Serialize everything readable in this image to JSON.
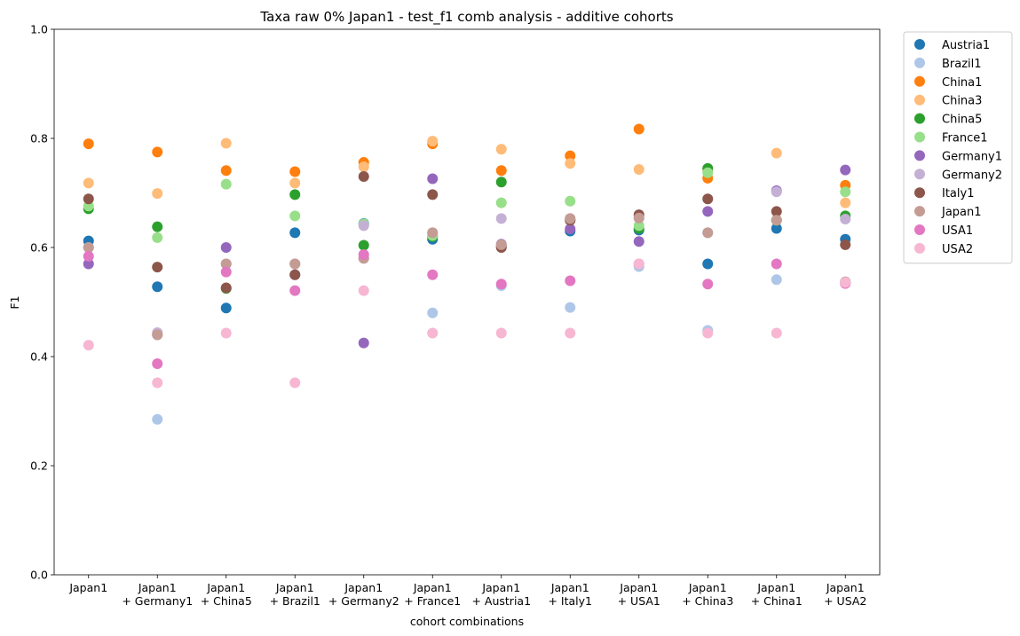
{
  "chart_data": {
    "type": "scatter",
    "title": "Taxa raw 0% Japan1 - test_f1 comb analysis - additive cohorts",
    "xlabel": "cohort combinations",
    "ylabel": "F1",
    "ylim": [
      0,
      1
    ],
    "yticks": [
      "0.0",
      "0.2",
      "0.4",
      "0.6",
      "0.8",
      "1.0"
    ],
    "grid": false,
    "legend_position": "outside-top-right",
    "categories": [
      [
        "Japan1"
      ],
      [
        "Japan1",
        "+ Germany1"
      ],
      [
        "Japan1",
        "+ China5"
      ],
      [
        "Japan1",
        "+ Brazil1"
      ],
      [
        "Japan1",
        "+ Germany2"
      ],
      [
        "Japan1",
        "+ France1"
      ],
      [
        "Japan1",
        "+ Austria1"
      ],
      [
        "Japan1",
        "+ Italy1"
      ],
      [
        "Japan1",
        "+ USA1"
      ],
      [
        "Japan1",
        "+ China3"
      ],
      [
        "Japan1",
        "+ China1"
      ],
      [
        "Japan1",
        "+ USA2"
      ]
    ],
    "series": [
      {
        "name": "Austria1",
        "color": "#1f77b4",
        "values": [
          0.612,
          0.528,
          0.489,
          0.627,
          0.644,
          0.615,
          0.602,
          0.63,
          0.632,
          0.57,
          0.635,
          0.615
        ]
      },
      {
        "name": "Brazil1",
        "color": "#aec7e8",
        "values": [
          0.6,
          0.285,
          0.57,
          0.57,
          0.58,
          0.48,
          0.53,
          0.49,
          0.565,
          0.448,
          0.541,
          0.537
        ]
      },
      {
        "name": "China1",
        "color": "#ff7f0e",
        "values": [
          0.79,
          0.775,
          0.741,
          0.739,
          0.756,
          0.79,
          0.741,
          0.768,
          0.817,
          0.727,
          0.65,
          0.714
        ]
      },
      {
        "name": "China3",
        "color": "#ffbb78",
        "values": [
          0.718,
          0.699,
          0.791,
          0.718,
          0.748,
          0.795,
          0.78,
          0.754,
          0.743,
          0.74,
          0.773,
          0.682
        ]
      },
      {
        "name": "China5",
        "color": "#2ca02c",
        "values": [
          0.671,
          0.638,
          0.525,
          0.697,
          0.604,
          0.62,
          0.72,
          0.65,
          0.635,
          0.745,
          0.65,
          0.658
        ]
      },
      {
        "name": "France1",
        "color": "#98df8a",
        "values": [
          0.676,
          0.618,
          0.716,
          0.658,
          0.643,
          0.622,
          0.682,
          0.685,
          0.64,
          0.737,
          0.65,
          0.702
        ]
      },
      {
        "name": "Germany1",
        "color": "#9467bd",
        "values": [
          0.57,
          0.44,
          0.6,
          0.55,
          0.425,
          0.726,
          0.606,
          0.634,
          0.611,
          0.666,
          0.704,
          0.742
        ]
      },
      {
        "name": "Germany2",
        "color": "#c5b0d5",
        "values": [
          0.6,
          0.444,
          0.57,
          0.57,
          0.64,
          0.627,
          0.653,
          0.653,
          0.654,
          0.627,
          0.702,
          0.652
        ]
      },
      {
        "name": "Italy1",
        "color": "#8c564b",
        "values": [
          0.689,
          0.564,
          0.526,
          0.55,
          0.73,
          0.697,
          0.6,
          0.65,
          0.66,
          0.689,
          0.666,
          0.605
        ]
      },
      {
        "name": "Japan1",
        "color": "#c49c94",
        "values": [
          0.6,
          0.44,
          0.57,
          0.57,
          0.58,
          0.627,
          0.605,
          0.653,
          0.654,
          0.627,
          0.65,
          0.537
        ]
      },
      {
        "name": "USA1",
        "color": "#e377c2",
        "values": [
          0.584,
          0.387,
          0.555,
          0.521,
          0.587,
          0.55,
          0.533,
          0.539,
          0.57,
          0.533,
          0.57,
          0.534
        ]
      },
      {
        "name": "USA2",
        "color": "#f7b6d2",
        "values": [
          0.421,
          0.352,
          0.443,
          0.352,
          0.521,
          0.443,
          0.443,
          0.443,
          0.57,
          0.443,
          0.443,
          0.536
        ]
      }
    ]
  }
}
